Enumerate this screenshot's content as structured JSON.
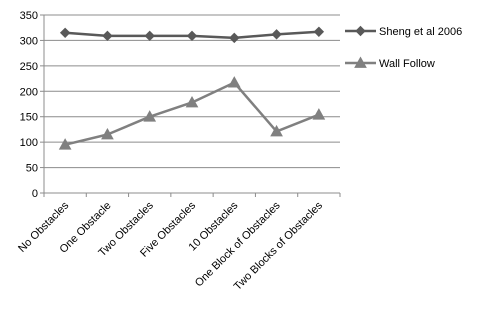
{
  "chart_data": {
    "type": "line",
    "categories": [
      "No Obstacles",
      "One Obstacle",
      "Two Obstacles",
      "Five Obstacles",
      "10 Obstacles",
      "One Block of Obstacles",
      "Two Blocks of Obstacles"
    ],
    "series": [
      {
        "name": "Sheng et al 2006",
        "values": [
          315,
          309,
          309,
          309,
          305,
          312,
          317
        ],
        "color": "#595959",
        "marker": "diamond"
      },
      {
        "name": "Wall Follow",
        "values": [
          95,
          115,
          150,
          178,
          217,
          121,
          154
        ],
        "color": "#808080",
        "marker": "triangle"
      }
    ],
    "ylim": [
      0,
      350
    ],
    "yticks": [
      0,
      50,
      100,
      150,
      200,
      250,
      300,
      350
    ],
    "grid": "horizontal",
    "legend_position": "right"
  }
}
